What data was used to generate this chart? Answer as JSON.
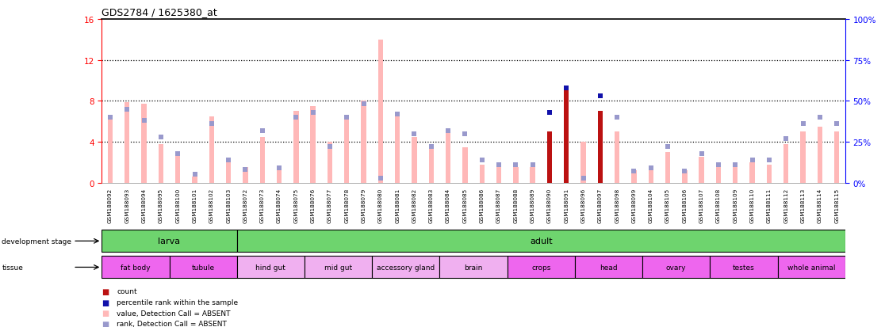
{
  "title": "GDS2784 / 1625380_at",
  "samples": [
    "GSM188092",
    "GSM188093",
    "GSM188094",
    "GSM188095",
    "GSM188100",
    "GSM188101",
    "GSM188102",
    "GSM188103",
    "GSM188072",
    "GSM188073",
    "GSM188074",
    "GSM188075",
    "GSM188076",
    "GSM188077",
    "GSM188078",
    "GSM188079",
    "GSM188080",
    "GSM188081",
    "GSM188082",
    "GSM188083",
    "GSM188084",
    "GSM188085",
    "GSM188086",
    "GSM188087",
    "GSM188088",
    "GSM188089",
    "GSM188090",
    "GSM188091",
    "GSM188096",
    "GSM188097",
    "GSM188098",
    "GSM188099",
    "GSM188104",
    "GSM188105",
    "GSM188106",
    "GSM188107",
    "GSM188108",
    "GSM188109",
    "GSM188110",
    "GSM188111",
    "GSM188112",
    "GSM188113",
    "GSM188114",
    "GSM188115"
  ],
  "bar_values": [
    6.5,
    7.9,
    7.7,
    3.8,
    2.8,
    0.6,
    6.5,
    2.2,
    1.5,
    4.5,
    1.5,
    7.0,
    7.5,
    4.0,
    6.5,
    8.0,
    14.0,
    6.5,
    4.5,
    3.5,
    5.0,
    3.5,
    1.8,
    1.5,
    1.5,
    1.5,
    5.0,
    9.0,
    4.0,
    7.0,
    5.0,
    1.2,
    1.5,
    3.0,
    1.2,
    2.5,
    1.5,
    1.5,
    2.0,
    1.8,
    3.8,
    5.0,
    5.5,
    5.0
  ],
  "rank_values_pct": [
    40,
    45,
    38,
    28,
    18,
    5,
    36,
    14,
    8,
    32,
    9,
    40,
    43,
    22,
    40,
    48,
    3,
    42,
    30,
    22,
    32,
    30,
    14,
    11,
    11,
    11,
    43,
    58,
    3,
    53,
    40,
    7,
    9,
    22,
    7,
    18,
    11,
    11,
    14,
    14,
    27,
    36,
    40,
    36
  ],
  "count_present": [
    false,
    false,
    false,
    false,
    false,
    false,
    false,
    false,
    false,
    false,
    false,
    false,
    false,
    false,
    false,
    false,
    false,
    false,
    false,
    false,
    false,
    false,
    false,
    false,
    false,
    false,
    true,
    true,
    false,
    true,
    false,
    false,
    false,
    false,
    false,
    false,
    false,
    false,
    false,
    false,
    false,
    false,
    false,
    false
  ],
  "dev_stage_groups": [
    {
      "label": "larva",
      "start": 0,
      "end": 8,
      "color": "#6ed46e"
    },
    {
      "label": "adult",
      "start": 8,
      "end": 44,
      "color": "#6ed46e"
    }
  ],
  "tissue_groups": [
    {
      "label": "fat body",
      "start": 0,
      "end": 4,
      "color": "#ee66ee"
    },
    {
      "label": "tubule",
      "start": 4,
      "end": 8,
      "color": "#ee66ee"
    },
    {
      "label": "hind gut",
      "start": 8,
      "end": 12,
      "color": "#f0b0f0"
    },
    {
      "label": "mid gut",
      "start": 12,
      "end": 16,
      "color": "#f0b0f0"
    },
    {
      "label": "accessory gland",
      "start": 16,
      "end": 20,
      "color": "#f0b0f0"
    },
    {
      "label": "brain",
      "start": 20,
      "end": 24,
      "color": "#f0b0f0"
    },
    {
      "label": "crops",
      "start": 24,
      "end": 28,
      "color": "#ee66ee"
    },
    {
      "label": "head",
      "start": 28,
      "end": 32,
      "color": "#ee66ee"
    },
    {
      "label": "ovary",
      "start": 32,
      "end": 36,
      "color": "#ee66ee"
    },
    {
      "label": "testes",
      "start": 36,
      "end": 40,
      "color": "#ee66ee"
    },
    {
      "label": "whole animal",
      "start": 40,
      "end": 44,
      "color": "#ee66ee"
    }
  ],
  "ylim_left": [
    0,
    16
  ],
  "ylim_right": [
    0,
    100
  ],
  "yticks_left": [
    0,
    4,
    8,
    12,
    16
  ],
  "yticks_right": [
    0,
    25,
    50,
    75,
    100
  ],
  "bar_color_absent": "#ffb8b8",
  "bar_color_present": "#bb1111",
  "rank_color_absent": "#9999cc",
  "rank_color_present": "#1111aa",
  "legend_items": [
    {
      "color": "#bb1111",
      "label": "count"
    },
    {
      "color": "#1111aa",
      "label": "percentile rank within the sample"
    },
    {
      "color": "#ffb8b8",
      "label": "value, Detection Call = ABSENT"
    },
    {
      "color": "#9999cc",
      "label": "rank, Detection Call = ABSENT"
    }
  ],
  "tick_bg_color": "#d8d8d8",
  "plot_bg": "white"
}
